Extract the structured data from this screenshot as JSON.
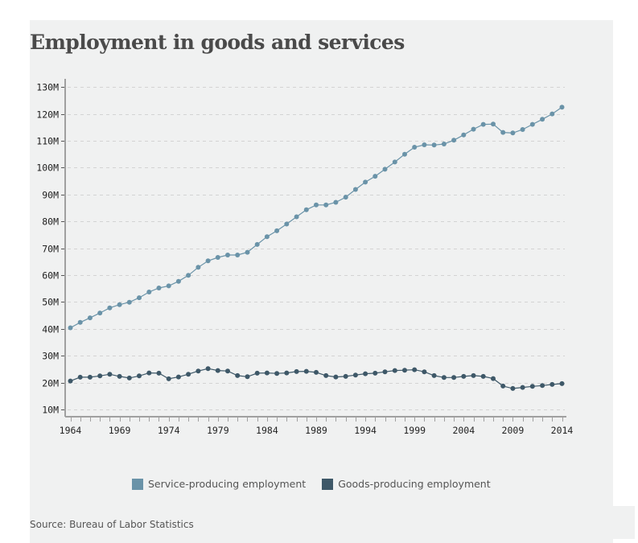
{
  "colors": {
    "service": "#6a93a8",
    "goods": "#3e5868",
    "grid": "#d3d3d3",
    "axis": "#a0a0a0"
  },
  "chart_data": {
    "type": "line",
    "title": "Employment in goods and services",
    "xlabel": "",
    "ylabel": "",
    "x": [
      1964,
      1965,
      1966,
      1967,
      1968,
      1969,
      1970,
      1971,
      1972,
      1973,
      1974,
      1975,
      1976,
      1977,
      1978,
      1979,
      1980,
      1981,
      1982,
      1983,
      1984,
      1985,
      1986,
      1987,
      1988,
      1989,
      1990,
      1991,
      1992,
      1993,
      1994,
      1995,
      1996,
      1997,
      1998,
      1999,
      2000,
      2001,
      2002,
      2003,
      2004,
      2005,
      2006,
      2007,
      2008,
      2009,
      2010,
      2011,
      2012,
      2013,
      2014
    ],
    "xlim": [
      1964,
      2014
    ],
    "ylim": [
      7,
      132
    ],
    "x_ticks": [
      1964,
      1969,
      1974,
      1979,
      1984,
      1989,
      1994,
      1999,
      2004,
      2009,
      2014
    ],
    "x_tick_labels": [
      "1964",
      "1969",
      "1974",
      "1979",
      "1984",
      "1989",
      "1994",
      "1999",
      "2004",
      "2009",
      "2014"
    ],
    "y_ticks": [
      10,
      20,
      30,
      40,
      50,
      60,
      70,
      80,
      90,
      100,
      110,
      120,
      130
    ],
    "y_tick_labels": [
      "10M",
      "20M",
      "30M",
      "40M",
      "50M",
      "60M",
      "70M",
      "80M",
      "90M",
      "100M",
      "110M",
      "120M",
      "130M"
    ],
    "grid": true,
    "legend_position": "bottom-center",
    "units": "millions of jobs",
    "series": [
      {
        "name": "Service-producing employment",
        "key": "service",
        "values": [
          40.4,
          42.4,
          44.1,
          45.9,
          47.8,
          49.0,
          49.9,
          51.6,
          53.7,
          55.2,
          56.0,
          57.7,
          59.9,
          62.9,
          65.3,
          66.6,
          67.5,
          67.5,
          68.5,
          71.4,
          74.3,
          76.5,
          79.0,
          81.7,
          84.3,
          86.1,
          86.1,
          87.1,
          89.0,
          91.9,
          94.6,
          96.8,
          99.4,
          102.1,
          105.0,
          107.6,
          108.5,
          108.4,
          108.8,
          110.2,
          112.2,
          114.3,
          116.1,
          116.2,
          113.1,
          112.9,
          114.2,
          116.1,
          118.0,
          120.0,
          122.5
        ]
      },
      {
        "name": "Goods-producing employment",
        "key": "goods",
        "values": [
          20.6,
          22.0,
          22.0,
          22.5,
          23.1,
          22.3,
          21.7,
          22.5,
          23.6,
          23.5,
          21.4,
          22.1,
          23.1,
          24.3,
          25.2,
          24.5,
          24.3,
          22.6,
          22.2,
          23.5,
          23.6,
          23.4,
          23.6,
          24.1,
          24.2,
          23.8,
          22.6,
          22.1,
          22.3,
          22.8,
          23.3,
          23.5,
          24.0,
          24.5,
          24.6,
          24.8,
          24.0,
          22.6,
          21.9,
          21.9,
          22.3,
          22.6,
          22.3,
          21.5,
          18.7,
          17.8,
          18.2,
          18.6,
          18.9,
          19.3,
          19.6
        ]
      }
    ]
  },
  "legend": {
    "items": [
      {
        "label": "Service-producing employment",
        "key": "service"
      },
      {
        "label": "Goods-producing employment",
        "key": "goods"
      }
    ]
  },
  "source": "Source: Bureau of Labor Statistics"
}
